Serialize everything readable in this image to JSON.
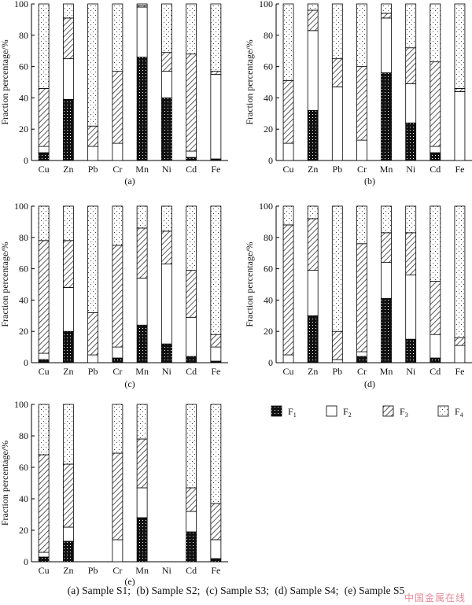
{
  "figure": {
    "caption_parts": [
      "(a)  Sample  S1;",
      "(b)  Sample  S2;",
      "(c) Sample S3;",
      "(d) Sample S4;",
      "(e) Sample S5"
    ],
    "watermark": "中国金属在线"
  },
  "colors": {
    "F1": "#111111",
    "F2": "#ffffff",
    "F3": "#c8c8c8",
    "F4": "#f4f4f4",
    "outline": "#000000"
  },
  "legend": [
    {
      "key": "F1",
      "base": "F",
      "sub": "1"
    },
    {
      "key": "F2",
      "base": "F",
      "sub": "2"
    },
    {
      "key": "F3",
      "base": "F",
      "sub": "3"
    },
    {
      "key": "F4",
      "base": "F",
      "sub": "4"
    }
  ],
  "chart_data": [
    {
      "type": "bar",
      "stacked": true,
      "panel_label": "(a)",
      "ylabel": "Fraction percentage/%",
      "ylim": [
        0,
        100
      ],
      "yticks": [
        0,
        20,
        40,
        60,
        80,
        100
      ],
      "categories": [
        "Cu",
        "Zn",
        "Pb",
        "Cr",
        "Mn",
        "Ni",
        "Cd",
        "Fe"
      ],
      "series": [
        {
          "name": "F1",
          "values": [
            5,
            39,
            0,
            0,
            66,
            40,
            2,
            1
          ]
        },
        {
          "name": "F2",
          "values": [
            4,
            26,
            9,
            11,
            32,
            17,
            4,
            54
          ]
        },
        {
          "name": "F3",
          "values": [
            37,
            26,
            13,
            46,
            1,
            12,
            62,
            2
          ]
        },
        {
          "name": "F4",
          "values": [
            54,
            9,
            78,
            43,
            1,
            31,
            32,
            43
          ]
        }
      ]
    },
    {
      "type": "bar",
      "stacked": true,
      "panel_label": "(b)",
      "ylabel": "Fraction percentage/%",
      "ylim": [
        0,
        100
      ],
      "yticks": [
        0,
        20,
        40,
        60,
        80,
        100
      ],
      "categories": [
        "Cu",
        "Zn",
        "Pb",
        "Cr",
        "Mn",
        "Ni",
        "Cd",
        "Fe"
      ],
      "series": [
        {
          "name": "F1",
          "values": [
            0,
            32,
            0,
            0,
            56,
            24,
            5,
            0
          ]
        },
        {
          "name": "F2",
          "values": [
            11,
            51,
            47,
            13,
            35,
            25,
            4,
            44
          ]
        },
        {
          "name": "F3",
          "values": [
            40,
            13,
            18,
            47,
            3,
            23,
            54,
            2
          ]
        },
        {
          "name": "F4",
          "values": [
            49,
            4,
            35,
            40,
            6,
            28,
            37,
            54
          ]
        }
      ]
    },
    {
      "type": "bar",
      "stacked": true,
      "panel_label": "(c)",
      "ylabel": "Fraction percentage/%",
      "ylim": [
        0,
        100
      ],
      "yticks": [
        0,
        20,
        40,
        60,
        80,
        100
      ],
      "categories": [
        "Cu",
        "Zn",
        "Pb",
        "Cr",
        "Mn",
        "Ni",
        "Cd",
        "Fe"
      ],
      "series": [
        {
          "name": "F1",
          "values": [
            2,
            20,
            0,
            3,
            24,
            12,
            4,
            1
          ]
        },
        {
          "name": "F2",
          "values": [
            4,
            28,
            5,
            7,
            30,
            51,
            25,
            9
          ]
        },
        {
          "name": "F3",
          "values": [
            72,
            30,
            27,
            65,
            32,
            21,
            30,
            8
          ]
        },
        {
          "name": "F4",
          "values": [
            22,
            22,
            68,
            25,
            14,
            16,
            41,
            82
          ]
        }
      ]
    },
    {
      "type": "bar",
      "stacked": true,
      "panel_label": "(d)",
      "ylabel": "Fraction percentage/%",
      "ylim": [
        0,
        100
      ],
      "yticks": [
        0,
        20,
        40,
        60,
        80,
        100
      ],
      "categories": [
        "Cu",
        "Zn",
        "Pb",
        "Cr",
        "Mn",
        "Ni",
        "Cd",
        "Fe"
      ],
      "series": [
        {
          "name": "F1",
          "values": [
            0,
            30,
            0,
            4,
            41,
            15,
            3,
            0
          ]
        },
        {
          "name": "F2",
          "values": [
            5,
            29,
            2,
            3,
            23,
            41,
            15,
            11
          ]
        },
        {
          "name": "F3",
          "values": [
            83,
            33,
            18,
            69,
            19,
            27,
            34,
            5
          ]
        },
        {
          "name": "F4",
          "values": [
            12,
            8,
            80,
            24,
            17,
            17,
            48,
            84
          ]
        }
      ]
    },
    {
      "type": "bar",
      "stacked": true,
      "panel_label": "(e)",
      "ylabel": "Fraction percentage/%",
      "ylim": [
        0,
        100
      ],
      "yticks": [
        0,
        20,
        40,
        60,
        80,
        100
      ],
      "categories": [
        "Cu",
        "Zn",
        "Pb",
        "Cr",
        "Mn",
        "Ni",
        "Cd",
        "Fe"
      ],
      "series": [
        {
          "name": "F1",
          "values": [
            3,
            13,
            0,
            0,
            28,
            0,
            19,
            2
          ]
        },
        {
          "name": "F2",
          "values": [
            3,
            9,
            0,
            14,
            19,
            0,
            13,
            12
          ]
        },
        {
          "name": "F3",
          "values": [
            62,
            40,
            0,
            55,
            31,
            0,
            15,
            23
          ]
        },
        {
          "name": "F4",
          "values": [
            32,
            38,
            0,
            31,
            22,
            0,
            53,
            63
          ]
        }
      ]
    }
  ]
}
